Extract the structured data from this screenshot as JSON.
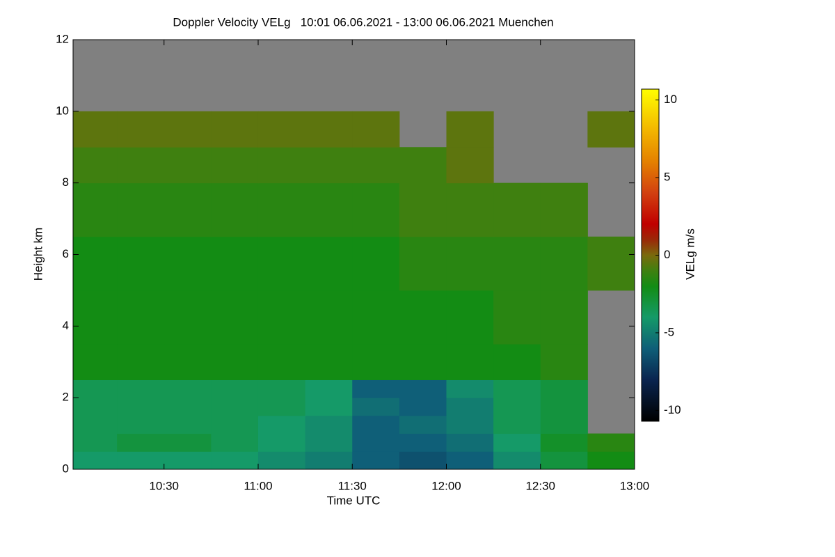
{
  "chart_data": {
    "type": "heatmap",
    "title": "Doppler Velocity VELg   10:01 06.06.2021 - 13:00 06.06.2021 Muenchen",
    "x_label": "Time UTC",
    "y_label": "Height km",
    "colorbar_label": "VELg m/s",
    "xlim": [
      601,
      780
    ],
    "xticks": [
      {
        "value": 630,
        "label": "10:30"
      },
      {
        "value": 660,
        "label": "11:00"
      },
      {
        "value": 690,
        "label": "11:30"
      },
      {
        "value": 720,
        "label": "12:00"
      },
      {
        "value": 750,
        "label": "12:30"
      },
      {
        "value": 780,
        "label": "13:00"
      }
    ],
    "ylim": [
      0,
      12
    ],
    "yticks": [
      0,
      2,
      4,
      6,
      8,
      10,
      12
    ],
    "zlim": [
      -10.7,
      10.7
    ],
    "zticks": [
      -10,
      -5,
      0,
      5,
      10
    ],
    "missing_color": "#808080",
    "colorscale": [
      [
        -10.7,
        "#000000"
      ],
      [
        -8,
        "#0a2550"
      ],
      [
        -6,
        "#0f5f78"
      ],
      [
        -4,
        "#159a68"
      ],
      [
        -2,
        "#138c14"
      ],
      [
        -1,
        "#3f8010"
      ],
      [
        0,
        "#7a6a0c"
      ],
      [
        1,
        "#9a2808"
      ],
      [
        2,
        "#c00000"
      ],
      [
        4,
        "#d24010"
      ],
      [
        6,
        "#e48000"
      ],
      [
        8,
        "#f2b400"
      ],
      [
        10.7,
        "#ffff00"
      ]
    ],
    "x_edges": [
      601,
      615,
      630,
      645,
      660,
      675,
      690,
      705,
      720,
      735,
      750,
      765,
      780
    ],
    "y_edges": [
      0,
      0.5,
      1,
      1.5,
      2,
      2.5,
      3.5,
      5,
      6.5,
      8,
      9,
      10,
      12
    ],
    "z": [
      [
        -4,
        -4,
        -4,
        -4,
        -4.5,
        -5,
        -6,
        -6.5,
        -6,
        -4.5,
        -3,
        -2
      ],
      [
        -3.5,
        -3,
        -3,
        -3.5,
        -4,
        -4.5,
        -6,
        -6,
        -5.5,
        -4,
        -2.5,
        -1.5
      ],
      [
        -3.5,
        -3.5,
        -3.5,
        -3.5,
        -4,
        -4.5,
        -6,
        -5.5,
        -5,
        -3.5,
        -3,
        null
      ],
      [
        -3.5,
        -3.5,
        -3.5,
        -3.5,
        -3.5,
        -4,
        -5.5,
        -6,
        -5,
        -3.5,
        -3,
        null
      ],
      [
        -3.5,
        -3.5,
        -3.5,
        -3.5,
        -3.5,
        -4,
        -6,
        -6,
        -4.5,
        -3.5,
        -3,
        null
      ],
      [
        -2,
        -2,
        -2,
        -2,
        -2,
        -2,
        -2,
        -2,
        -2,
        -2,
        -1.5,
        null
      ],
      [
        -2,
        -2,
        -2,
        -2,
        -2,
        -2,
        -2,
        -2,
        -2,
        -1.5,
        -1.5,
        null
      ],
      [
        -2,
        -2,
        -2,
        -2,
        -2,
        -2,
        -2,
        -1.5,
        -1.5,
        -1.5,
        -1.5,
        -1
      ],
      [
        -1.5,
        -1.5,
        -1.5,
        -1.5,
        -1.5,
        -1.5,
        -1.5,
        -1,
        -1,
        -1,
        -1,
        null
      ],
      [
        -1,
        -1,
        -1,
        -1,
        -1,
        -1,
        -1,
        -1,
        -0.5,
        null,
        null,
        null
      ],
      [
        -0.5,
        -0.5,
        -0.5,
        -0.5,
        -0.5,
        -0.5,
        -0.5,
        null,
        -0.5,
        null,
        null,
        -0.5
      ],
      [
        null,
        null,
        null,
        null,
        null,
        null,
        null,
        null,
        null,
        null,
        null,
        null
      ]
    ]
  }
}
